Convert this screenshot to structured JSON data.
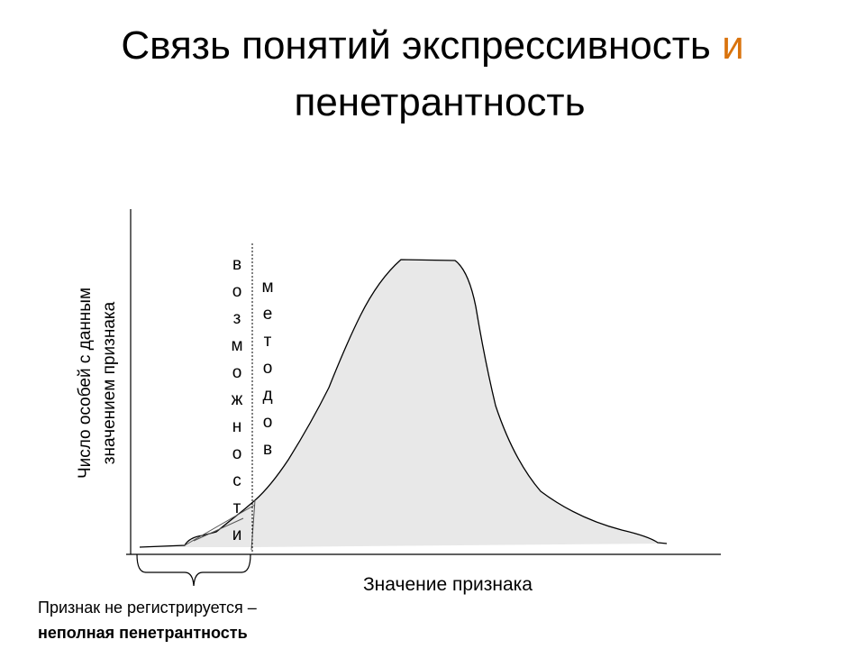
{
  "title": {
    "line1": "Связь понятий экспрессивность",
    "conjunction": "и",
    "line2": "пенетрантность"
  },
  "diagram": {
    "y_axis_label": [
      "Число особей с данным",
      "значением признака"
    ],
    "x_axis_label": "Значение признака",
    "limit_words": [
      "возможности",
      "методов"
    ],
    "caption": {
      "line1": "Признак не регистрируется –",
      "line2": "неполная пенетрантность"
    }
  }
}
